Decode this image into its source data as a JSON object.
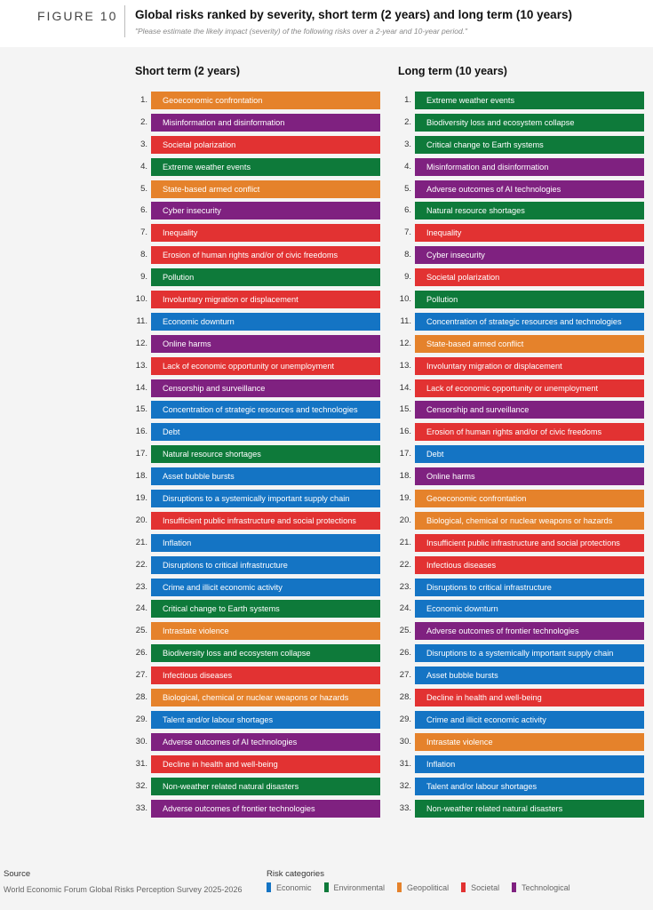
{
  "header": {
    "figure_label": "FIGURE 10",
    "title": "Global risks ranked by severity, short term (2 years) and long term (10 years)",
    "subtitle": "\"Please estimate the likely impact (severity) of the following risks over a 2-year and 10-year period.\""
  },
  "colors": {
    "Economic": "#1474c4",
    "Environmental": "#0e7a3a",
    "Geopolitical": "#e5822b",
    "Societal": "#e23232",
    "Technological": "#7f2180"
  },
  "short_term": {
    "heading": "Short term (2 years)",
    "items": [
      {
        "rank": "1.",
        "label": "Geoeconomic confrontation",
        "category": "Geopolitical"
      },
      {
        "rank": "2.",
        "label": "Misinformation and disinformation",
        "category": "Technological"
      },
      {
        "rank": "3.",
        "label": "Societal polarization",
        "category": "Societal"
      },
      {
        "rank": "4.",
        "label": "Extreme weather events",
        "category": "Environmental"
      },
      {
        "rank": "5.",
        "label": "State-based armed conflict",
        "category": "Geopolitical"
      },
      {
        "rank": "6.",
        "label": "Cyber insecurity",
        "category": "Technological"
      },
      {
        "rank": "7.",
        "label": "Inequality",
        "category": "Societal"
      },
      {
        "rank": "8.",
        "label": "Erosion of human rights and/or of civic freedoms",
        "category": "Societal"
      },
      {
        "rank": "9.",
        "label": "Pollution",
        "category": "Environmental"
      },
      {
        "rank": "10.",
        "label": "Involuntary migration or displacement",
        "category": "Societal"
      },
      {
        "rank": "11.",
        "label": "Economic downturn",
        "category": "Economic"
      },
      {
        "rank": "12.",
        "label": "Online harms",
        "category": "Technological"
      },
      {
        "rank": "13.",
        "label": "Lack of economic opportunity or unemployment",
        "category": "Societal"
      },
      {
        "rank": "14.",
        "label": "Censorship and surveillance",
        "category": "Technological"
      },
      {
        "rank": "15.",
        "label": "Concentration of strategic resources and technologies",
        "category": "Economic"
      },
      {
        "rank": "16.",
        "label": "Debt",
        "category": "Economic"
      },
      {
        "rank": "17.",
        "label": "Natural resource shortages",
        "category": "Environmental"
      },
      {
        "rank": "18.",
        "label": "Asset bubble bursts",
        "category": "Economic"
      },
      {
        "rank": "19.",
        "label": "Disruptions to a systemically important supply chain",
        "category": "Economic"
      },
      {
        "rank": "20.",
        "label": "Insufficient public infrastructure and social protections",
        "category": "Societal"
      },
      {
        "rank": "21.",
        "label": "Inflation",
        "category": "Economic"
      },
      {
        "rank": "22.",
        "label": "Disruptions to critical infrastructure",
        "category": "Economic"
      },
      {
        "rank": "23.",
        "label": "Crime and illicit economic activity",
        "category": "Economic"
      },
      {
        "rank": "24.",
        "label": "Critical change to Earth systems",
        "category": "Environmental"
      },
      {
        "rank": "25.",
        "label": "Intrastate violence",
        "category": "Geopolitical"
      },
      {
        "rank": "26.",
        "label": "Biodiversity loss and ecosystem collapse",
        "category": "Environmental"
      },
      {
        "rank": "27.",
        "label": "Infectious diseases",
        "category": "Societal"
      },
      {
        "rank": "28.",
        "label": "Biological, chemical or nuclear weapons or hazards",
        "category": "Geopolitical"
      },
      {
        "rank": "29.",
        "label": "Talent and/or labour shortages",
        "category": "Economic"
      },
      {
        "rank": "30.",
        "label": "Adverse outcomes of AI technologies",
        "category": "Technological"
      },
      {
        "rank": "31.",
        "label": "Decline in health and well-being",
        "category": "Societal"
      },
      {
        "rank": "32.",
        "label": "Non-weather related natural disasters",
        "category": "Environmental"
      },
      {
        "rank": "33.",
        "label": "Adverse outcomes of frontier technologies",
        "category": "Technological"
      }
    ]
  },
  "long_term": {
    "heading": "Long term (10 years)",
    "items": [
      {
        "rank": "1.",
        "label": "Extreme weather events",
        "category": "Environmental"
      },
      {
        "rank": "2.",
        "label": "Biodiversity loss and ecosystem collapse",
        "category": "Environmental"
      },
      {
        "rank": "3.",
        "label": "Critical change to Earth systems",
        "category": "Environmental"
      },
      {
        "rank": "4.",
        "label": "Misinformation and disinformation",
        "category": "Technological"
      },
      {
        "rank": "5.",
        "label": "Adverse outcomes of AI technologies",
        "category": "Technological"
      },
      {
        "rank": "6.",
        "label": "Natural resource shortages",
        "category": "Environmental"
      },
      {
        "rank": "7.",
        "label": "Inequality",
        "category": "Societal"
      },
      {
        "rank": "8.",
        "label": "Cyber insecurity",
        "category": "Technological"
      },
      {
        "rank": "9.",
        "label": "Societal polarization",
        "category": "Societal"
      },
      {
        "rank": "10.",
        "label": "Pollution",
        "category": "Environmental"
      },
      {
        "rank": "11.",
        "label": "Concentration of strategic resources and technologies",
        "category": "Economic"
      },
      {
        "rank": "12.",
        "label": "State-based armed conflict",
        "category": "Geopolitical"
      },
      {
        "rank": "13.",
        "label": "Involuntary migration or displacement",
        "category": "Societal"
      },
      {
        "rank": "14.",
        "label": "Lack of economic opportunity or unemployment",
        "category": "Societal"
      },
      {
        "rank": "15.",
        "label": "Censorship and surveillance",
        "category": "Technological"
      },
      {
        "rank": "16.",
        "label": "Erosion of human rights and/or of civic freedoms",
        "category": "Societal"
      },
      {
        "rank": "17.",
        "label": "Debt",
        "category": "Economic"
      },
      {
        "rank": "18.",
        "label": "Online harms",
        "category": "Technological"
      },
      {
        "rank": "19.",
        "label": "Geoeconomic confrontation",
        "category": "Geopolitical"
      },
      {
        "rank": "20.",
        "label": "Biological, chemical or nuclear weapons or hazards",
        "category": "Geopolitical"
      },
      {
        "rank": "21.",
        "label": "Insufficient public infrastructure and social protections",
        "category": "Societal"
      },
      {
        "rank": "22.",
        "label": "Infectious diseases",
        "category": "Societal"
      },
      {
        "rank": "23.",
        "label": "Disruptions to critical infrastructure",
        "category": "Economic"
      },
      {
        "rank": "24.",
        "label": "Economic downturn",
        "category": "Economic"
      },
      {
        "rank": "25.",
        "label": "Adverse outcomes of frontier technologies",
        "category": "Technological"
      },
      {
        "rank": "26.",
        "label": "Disruptions to a systemically important supply chain",
        "category": "Economic"
      },
      {
        "rank": "27.",
        "label": "Asset bubble bursts",
        "category": "Economic"
      },
      {
        "rank": "28.",
        "label": "Decline in health and well-being",
        "category": "Societal"
      },
      {
        "rank": "29.",
        "label": "Crime and illicit economic activity",
        "category": "Economic"
      },
      {
        "rank": "30.",
        "label": "Intrastate violence",
        "category": "Geopolitical"
      },
      {
        "rank": "31.",
        "label": "Inflation",
        "category": "Economic"
      },
      {
        "rank": "32.",
        "label": "Talent and/or labour shortages",
        "category": "Economic"
      },
      {
        "rank": "33.",
        "label": "Non-weather related natural disasters",
        "category": "Environmental"
      }
    ]
  },
  "footer": {
    "source_label": "Source",
    "source_text": "World Economic Forum Global Risks Perception Survey 2025-2026",
    "legend_title": "Risk categories",
    "legend": [
      {
        "label": "Economic",
        "category": "Economic"
      },
      {
        "label": "Environmental",
        "category": "Environmental"
      },
      {
        "label": "Geopolitical",
        "category": "Geopolitical"
      },
      {
        "label": "Societal",
        "category": "Societal"
      },
      {
        "label": "Technological",
        "category": "Technological"
      }
    ]
  }
}
